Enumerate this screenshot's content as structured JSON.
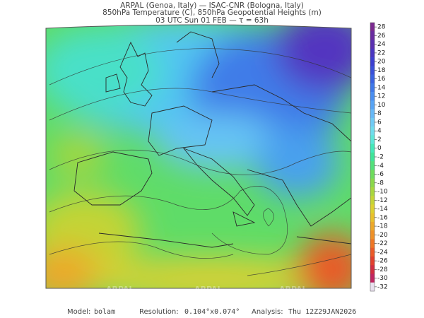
{
  "header": {
    "line1": "ARPAL (Genoa, Italy)  —  ISAC-CNR (Bologna, Italy)",
    "line2": "850hPa Temperature (C), 850hPa Geopotential Heights (m)",
    "line3": "03 UTC Sun 01 FEB  —  τ = 63h"
  },
  "watermark": "ARPAL",
  "colorbar": {
    "ticks": [
      28,
      26,
      24,
      22,
      20,
      18,
      16,
      14,
      12,
      10,
      8,
      6,
      4,
      2,
      0,
      -2,
      -4,
      -6,
      -8,
      -10,
      -12,
      -14,
      -16,
      -18,
      -20,
      -22,
      -24,
      -26,
      -28,
      -30,
      -32
    ],
    "colors": [
      "#7b2a90",
      "#6a2ca0",
      "#5a30b0",
      "#4a36c0",
      "#3c3fd0",
      "#3a50d8",
      "#3a62e0",
      "#3f78e8",
      "#4a8ef0",
      "#58a4f4",
      "#66b8f6",
      "#6fcaf4",
      "#70dcec",
      "#5ee6d8",
      "#44e8b8",
      "#3ee498",
      "#52e07a",
      "#6edc5c",
      "#8ad84a",
      "#a8d63e",
      "#c4d436",
      "#dcd030",
      "#e8c02c",
      "#eca82a",
      "#ee9028",
      "#ee7626",
      "#ea5a28",
      "#e0402e",
      "#d02e40",
      "#c02660",
      "#e8e0ee"
    ]
  },
  "footer": {
    "model_label": "Model:",
    "model": "bolam",
    "resolution_label": "Resolution:",
    "resolution": "0.104°x0.074°",
    "analysis_label": "Analysis:",
    "analysis": "Thu 12Z29JAN2026"
  }
}
